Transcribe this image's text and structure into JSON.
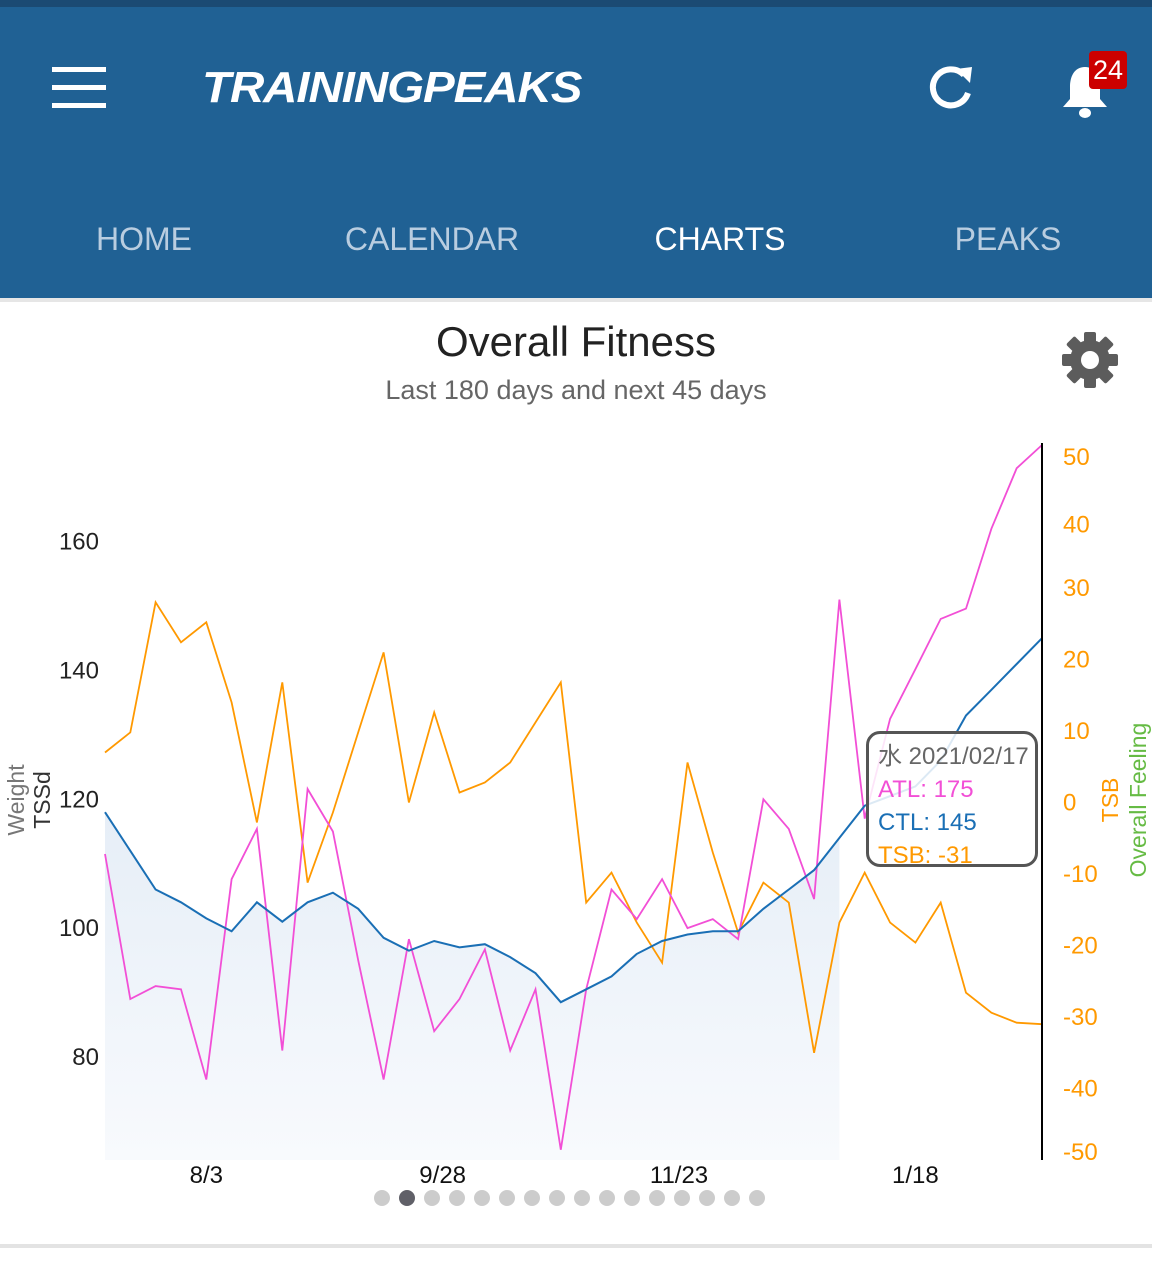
{
  "header": {
    "logo": "TRAININGPEAKS",
    "notification_count": "24",
    "brand_color": "#206194"
  },
  "tabs": [
    {
      "label": "HOME",
      "active": false
    },
    {
      "label": "CALENDAR",
      "active": false
    },
    {
      "label": "CHARTS",
      "active": true
    },
    {
      "label": "PEAKS",
      "active": false
    }
  ],
  "chart_panel": {
    "title": "Overall Fitness",
    "subtitle": "Last 180 days and next 45 days"
  },
  "tooltip": {
    "date": "水 2021/02/17",
    "atl": "ATL: 175",
    "ctl": "CTL: 145",
    "tsb": "TSB: -31"
  },
  "pagination": {
    "count": 16,
    "active_index": 1
  },
  "chart_data": {
    "type": "line",
    "x": [
      "2020-07-10",
      "2020-07-16",
      "2020-07-22",
      "2020-07-28",
      "2020-08-03",
      "2020-08-09",
      "2020-08-15",
      "2020-08-21",
      "2020-08-27",
      "2020-09-02",
      "2020-09-08",
      "2020-09-14",
      "2020-09-20",
      "2020-09-26",
      "2020-10-02",
      "2020-10-08",
      "2020-10-14",
      "2020-10-20",
      "2020-10-26",
      "2020-11-01",
      "2020-11-07",
      "2020-11-13",
      "2020-11-19",
      "2020-11-25",
      "2020-12-01",
      "2020-12-07",
      "2020-12-13",
      "2020-12-19",
      "2020-12-25",
      "2020-12-31",
      "2021-01-06",
      "2021-01-12",
      "2021-01-18",
      "2021-01-24",
      "2021-01-30",
      "2021-02-05",
      "2021-02-11",
      "2021-02-17"
    ],
    "x_ticks": [
      "8/3",
      "9/28",
      "11/23",
      "1/18"
    ],
    "x_tick_dates": [
      "2020-08-03",
      "2020-09-28",
      "2020-11-23",
      "2021-01-18"
    ],
    "left_axis": {
      "labels": [
        "Weight",
        "TSSd"
      ],
      "ticks": [
        80,
        100,
        120,
        140,
        160
      ],
      "ylim": [
        64,
        175
      ]
    },
    "right_axis": {
      "labels": [
        "TSB",
        "Overall Feeling"
      ],
      "label_colors": [
        "#ff9900",
        "#66bb44"
      ],
      "ticks": [
        50,
        40,
        30,
        20,
        10,
        0,
        -10,
        -20,
        -30,
        -40,
        -50
      ],
      "ylim": [
        -50,
        50
      ],
      "color": "#ff9900"
    },
    "series": [
      {
        "name": "ATL",
        "axis": "left",
        "color": "#f24fd6",
        "values": [
          111.5,
          89,
          91,
          90.5,
          76.5,
          107.6,
          115.4,
          81,
          121.6,
          115,
          95,
          76.5,
          98.3,
          84,
          89,
          96.7,
          81,
          90.5,
          65.6,
          90.5,
          106,
          101.4,
          107.6,
          100,
          101.4,
          98.3,
          120,
          115.4,
          104.5,
          151,
          117,
          132.5,
          140.2,
          148,
          149.6,
          162,
          171.4,
          175
        ]
      },
      {
        "name": "CTL",
        "axis": "left",
        "color": "#1a6fb5",
        "values": [
          118,
          112,
          106,
          104,
          101.5,
          99.5,
          104,
          101,
          104,
          105.5,
          103,
          98.5,
          96.5,
          98,
          97,
          97.5,
          95.5,
          93,
          88.5,
          90.5,
          92.5,
          96,
          98,
          99,
          99.5,
          99.5,
          103,
          106,
          109,
          114,
          119,
          120.5,
          122,
          126,
          133,
          137,
          141,
          145
        ]
      },
      {
        "name": "TSB",
        "axis": "right",
        "color": "#ff9900",
        "values": [
          7,
          9.8,
          28,
          22.4,
          25.2,
          14,
          -2.8,
          16.8,
          -11.2,
          -1.4,
          9.8,
          21,
          0,
          12.6,
          1.4,
          2.8,
          5.6,
          11.2,
          16.8,
          -14,
          -9.8,
          -16.8,
          -22.4,
          5.6,
          -7,
          -18.2,
          -11.2,
          -14,
          -35,
          -16.8,
          -9.8,
          -16.8,
          -19.6,
          -14,
          -26.6,
          -29.4,
          -30.8,
          -31
        ]
      }
    ],
    "ctl_fill_until": "2020-12-31",
    "cursor_date": "2021-02-17"
  }
}
